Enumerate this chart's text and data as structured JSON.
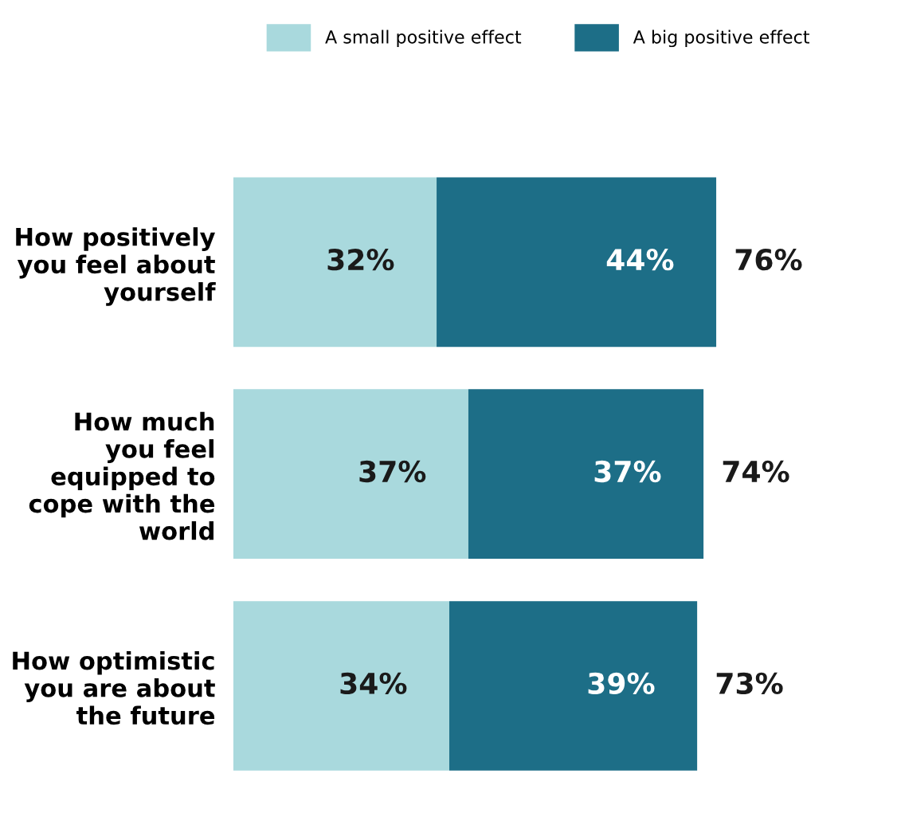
{
  "chart_data": {
    "type": "bar",
    "orientation": "horizontal",
    "stacked": true,
    "legend": "top",
    "categories": [
      "How positively\nyou feel about\nyourself",
      "How much\nyou feel\nequipped to\ncope with the\nworld",
      "How optimistic\nyou are about\nthe future"
    ],
    "series": [
      {
        "name": "A small positive effect",
        "color": "#a9d9dd",
        "values": [
          32,
          37,
          34
        ],
        "value_labels": [
          "32%",
          "37%",
          "34%"
        ]
      },
      {
        "name": "A big positive effect",
        "color": "#1d6e87",
        "values": [
          44,
          37,
          39
        ],
        "value_labels": [
          "44%",
          "37%",
          "39%"
        ]
      }
    ],
    "totals": [
      "76%",
      "74%",
      "73%"
    ]
  }
}
